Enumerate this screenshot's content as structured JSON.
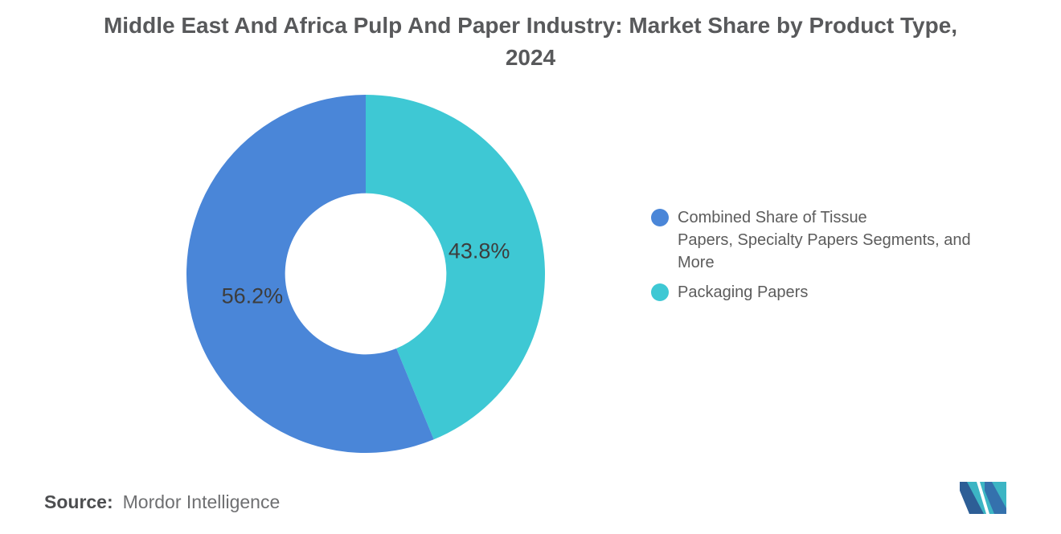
{
  "title": {
    "text": "Middle East And Africa Pulp And Paper Industry: Market Share by Product Type, 2024"
  },
  "chart_data": {
    "type": "pie",
    "subtype": "donut",
    "title": "Middle East And Africa Pulp And Paper Industry: Market Share by Product Type, 2024",
    "unit": "%",
    "slices": [
      {
        "name": "Combined Share of Tissue Papers, Specialty Papers Segments, and More",
        "value": 56.2,
        "display": "56.2%",
        "color": "#4A86D8"
      },
      {
        "name": "Packaging Papers",
        "value": 43.8,
        "display": "43.8%",
        "color": "#3EC8D4"
      }
    ],
    "start_angle_deg": 0,
    "direction": "clockwise",
    "draw_order": [
      1,
      0
    ],
    "inner_radius_ratio": 0.45,
    "label_radius_ratio": 0.645,
    "label_color": "#3D3D3D",
    "legend_position": "right",
    "grid": false
  },
  "legend": {
    "items": [
      {
        "label": "Combined Share of Tissue\nPapers, Specialty Papers Segments, and\nMore",
        "color": "#4A86D8"
      },
      {
        "label": "Packaging Papers",
        "color": "#3EC8D4"
      }
    ]
  },
  "source": {
    "prefix": "Source:",
    "text": "Mordor Intelligence"
  },
  "logo": {
    "name": "mordor-intelligence-logo",
    "teal": "#3CB5C4",
    "dark_blue": "#2D5E96",
    "medium_blue": "#3471AD"
  }
}
